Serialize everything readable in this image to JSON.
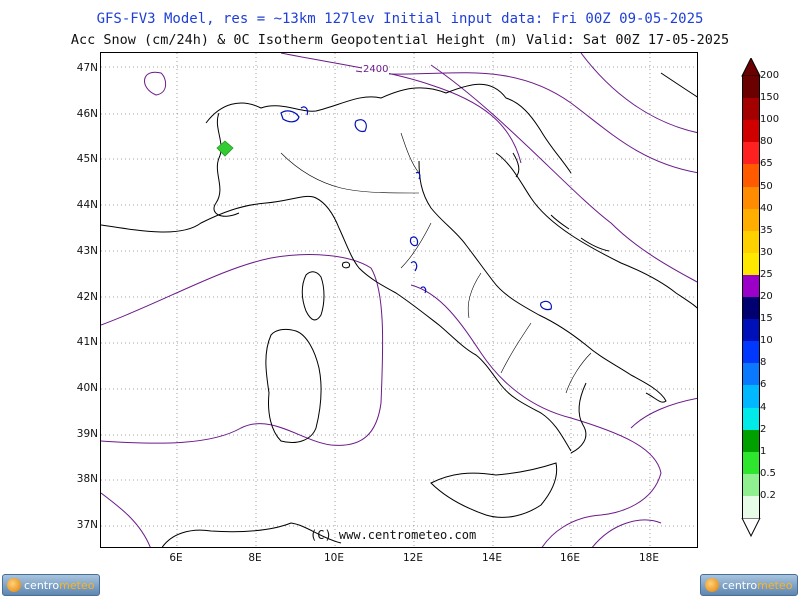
{
  "header": {
    "line1": "GFS-FV3 Model, res = ~13km 127lev   Initial input data: Fri 00Z 09-05-2025",
    "line2": "Acc Snow (cm/24h) & 0C Isotherm Geopotential Height (m)  Valid: Sat 00Z 17-05-2025"
  },
  "map": {
    "lat_labels": [
      "47N",
      "46N",
      "45N",
      "44N",
      "43N",
      "42N",
      "41N",
      "40N",
      "39N",
      "38N",
      "37N"
    ],
    "lon_labels": [
      "6E",
      "8E",
      "10E",
      "12E",
      "14E",
      "16E",
      "18E"
    ],
    "contour_label": "2400",
    "copyright": "(C) www.centrometeo.com",
    "isotherm_color": "#6b1a8a",
    "snow_marker_color": "#33cc33"
  },
  "legend": {
    "items": [
      {
        "label": "200",
        "color": "#6b0000"
      },
      {
        "label": "150",
        "color": "#a50000"
      },
      {
        "label": "100",
        "color": "#d00000"
      },
      {
        "label": "80",
        "color": "#ff2020"
      },
      {
        "label": "65",
        "color": "#ff5a00"
      },
      {
        "label": "50",
        "color": "#ff8c00"
      },
      {
        "label": "40",
        "color": "#ffae00"
      },
      {
        "label": "35",
        "color": "#ffd000"
      },
      {
        "label": "30",
        "color": "#ffe800"
      },
      {
        "label": "25",
        "color": "#9a00c8"
      },
      {
        "label": "20",
        "color": "#000070"
      },
      {
        "label": "15",
        "color": "#0010b8"
      },
      {
        "label": "10",
        "color": "#0038ff"
      },
      {
        "label": "8",
        "color": "#0a78ff"
      },
      {
        "label": "6",
        "color": "#00b8ff"
      },
      {
        "label": "4",
        "color": "#00eaea"
      },
      {
        "label": "2",
        "color": "#00a000"
      },
      {
        "label": "1",
        "color": "#2ee62e"
      },
      {
        "label": "0.5",
        "color": "#90f090"
      },
      {
        "label": "0.2",
        "color": "#e6fce6"
      }
    ]
  },
  "logos": {
    "left": {
      "text1": "centro",
      "text2": "meteo"
    },
    "right": {
      "text1": "centro",
      "text2": "meteo"
    }
  }
}
